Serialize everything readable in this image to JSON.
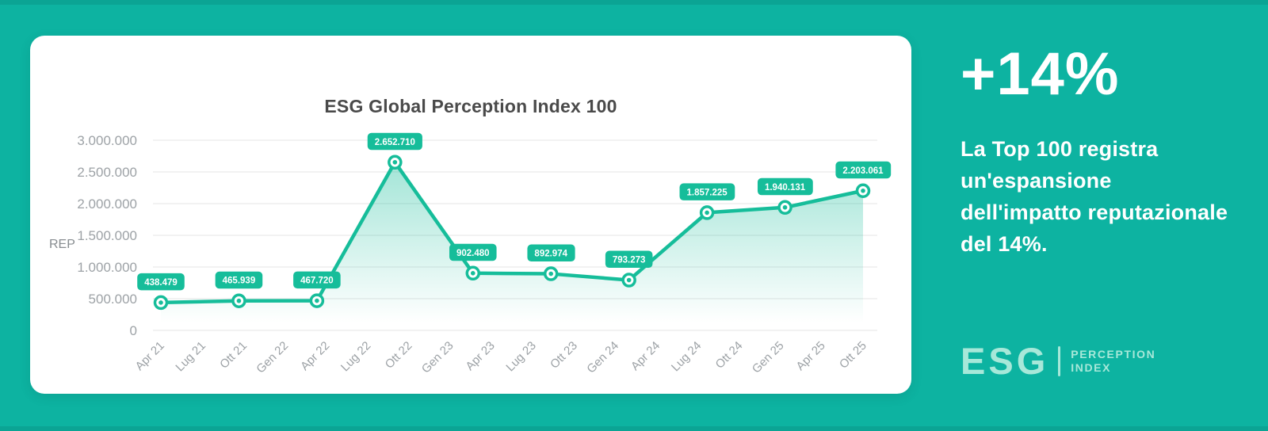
{
  "theme": {
    "background": "#0db3a1",
    "accent": "#16bd9a",
    "card_background": "#ffffff",
    "grid_color": "#ededed",
    "axis_text_color": "#9da2a6",
    "axis_title_color": "#878c90",
    "title_color": "#4a4a4a",
    "badge_text_color": "#ffffff",
    "logo_color": "#a7e8d9",
    "area_fill_top": "rgba(22,189,154,0.45)",
    "area_fill_bottom": "rgba(22,189,154,0)"
  },
  "card": {
    "title": "ESG Global Perception Index 100"
  },
  "chart_data": {
    "type": "area",
    "title": "ESG Global Perception Index 100",
    "xlabel": "",
    "ylabel": "REP",
    "ylim": [
      0,
      3000000
    ],
    "grid": "horizontal-only",
    "legend": "none",
    "y_ticks": [
      {
        "value": 3000000,
        "label": "3.000.000"
      },
      {
        "value": 2500000,
        "label": "2.500.000"
      },
      {
        "value": 2000000,
        "label": "2.000.000"
      },
      {
        "value": 1500000,
        "label": "1.500.000"
      },
      {
        "value": 1000000,
        "label": "1.000.000"
      },
      {
        "value": 500000,
        "label": "500.000"
      },
      {
        "value": 0,
        "label": "0"
      }
    ],
    "x_ticks": [
      "Apr 21",
      "Lug 21",
      "Ott 21",
      "Gen 22",
      "Apr 22",
      "Lug 22",
      "Ott 22",
      "Gen 23",
      "Apr 23",
      "Lug 23",
      "Ott 23",
      "Gen 24",
      "Apr 24",
      "Lug 24",
      "Ott 24",
      "Gen 25",
      "Apr 25",
      "Ott 25"
    ],
    "series": [
      {
        "name": "REP",
        "x": [
          "Apr 21",
          "Ott 21",
          "Apr 22",
          "Ott 22",
          "Apr 23",
          "Ott 23",
          "Apr 24",
          "Ott 24",
          "Apr 25",
          "Ott 25"
        ],
        "values": [
          438479,
          465939,
          467720,
          2652710,
          902480,
          892974,
          793273,
          1857225,
          1940131,
          2203061
        ],
        "point_labels": [
          "438.479",
          "465.939",
          "467.720",
          "2.652.710",
          "902.480",
          "892.974",
          "793.273",
          "1.857.225",
          "1.940.131",
          "2.203.061"
        ]
      }
    ]
  },
  "panel": {
    "headline": "+14%",
    "body": "La Top 100 registra un'espansione dell'impatto reputazionale del 14%.",
    "body_lines": [
      "La Top 100 registra",
      "un'espansione",
      "dell'impatto reputazionale",
      "del 14%."
    ],
    "logo": {
      "wordmark": "ESG",
      "line1": "PERCEPTION",
      "line2": "INDEX"
    }
  }
}
